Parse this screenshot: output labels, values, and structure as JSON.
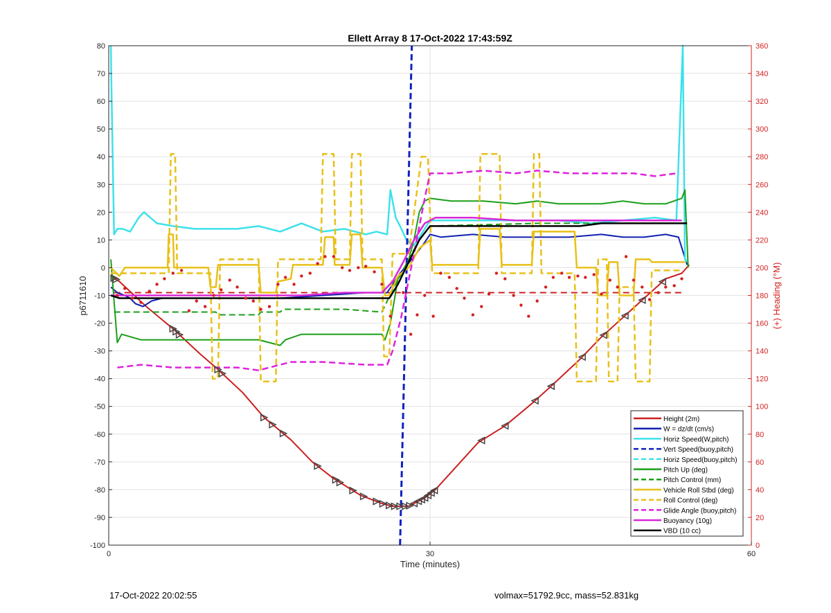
{
  "footer": {
    "left_text": "17-Oct-2022 20:02:55",
    "right_text": "volmax=51792.9cc, mass=52.831kg"
  },
  "chart_data": {
    "type": "line",
    "title": "Ellett Array 8 17-Oct-2022 17:43:59Z",
    "xlabel": "Time (minutes)",
    "ylabel": "p6711610",
    "ylabel_right": "(+) Heading (°M)",
    "xlim": [
      0,
      60
    ],
    "ylim": [
      -100,
      80
    ],
    "ylim_right": [
      0,
      360
    ],
    "x_ticks": [
      0,
      30,
      60
    ],
    "y_ticks": [
      80,
      70,
      60,
      50,
      40,
      30,
      20,
      10,
      0,
      -10,
      -20,
      -30,
      -40,
      -50,
      -60,
      -70,
      -80,
      -90,
      -100
    ],
    "y_ticks_right": [
      360,
      340,
      320,
      300,
      280,
      260,
      240,
      220,
      200,
      180,
      160,
      140,
      120,
      100,
      80,
      60,
      40,
      20,
      0
    ],
    "grid": true,
    "legend_position": "bottom-right",
    "colors": {
      "axis_right": "#d42020",
      "title": "#000000"
    },
    "series": [
      {
        "name": "Height (2m)",
        "color": "#cc1f1f",
        "style": "solid",
        "width": 2,
        "x": [
          0.2,
          1.0,
          3.5,
          6.0,
          8.5,
          10.0,
          12.5,
          14.5,
          17.0,
          19.0,
          21.0,
          23.5,
          25.5,
          26.5,
          27.5,
          28.0,
          28.5,
          29.5,
          30.5,
          34.5,
          37.0,
          39.5,
          41.5,
          44.0,
          46.0,
          48.0,
          50.0,
          52.0,
          53.5,
          54.2
        ],
        "y": [
          -3,
          -5,
          -14,
          -22,
          -31,
          -36,
          -45,
          -54,
          -62,
          -70,
          -76,
          -82,
          -85,
          -86,
          -86,
          -86,
          -85,
          -83,
          -80,
          -63,
          -57,
          -49,
          -42,
          -33,
          -25,
          -18,
          -11,
          -4,
          -2,
          1
        ]
      },
      {
        "name": "W = dz/dt (cm/s)",
        "color": "#1020b0",
        "style": "solid",
        "width": 2,
        "x": [
          0.2,
          0.8,
          1.5,
          2.0,
          2.5,
          3.2,
          4.0,
          5.0,
          8.0,
          12.0,
          16.0,
          20.0,
          24.0,
          26.0,
          26.5,
          27.2,
          28.5,
          29.3,
          30.0,
          31.0,
          34.0,
          37.0,
          40.0,
          43.0,
          46.0,
          48.0,
          50.0,
          52.0,
          53.2,
          54.0
        ],
        "y": [
          -7,
          -9,
          -10,
          -11,
          -13,
          -14,
          -12,
          -11,
          -11,
          -11,
          -11,
          -10,
          -9,
          -9,
          -6,
          -2,
          4,
          8,
          12,
          11,
          12,
          11,
          11,
          11,
          12,
          11,
          11,
          12,
          11,
          1
        ]
      },
      {
        "name": "Horiz Speed(W,pitch)",
        "color": "#3de1eb",
        "style": "solid",
        "width": 2.5,
        "x": [
          0.2,
          0.25,
          0.5,
          0.8,
          1.3,
          2.0,
          2.8,
          3.3,
          4.5,
          6.0,
          8.0,
          10.0,
          12.0,
          14.0,
          16.0,
          18.0,
          20.0,
          22.0,
          24.0,
          25.0,
          26.0,
          26.3,
          26.8,
          27.2,
          27.8,
          28.5,
          30.0,
          33.0,
          36.0,
          39.0,
          42.0,
          45.0,
          48.0,
          51.0,
          53.0,
          53.6,
          53.8,
          54.0
        ],
        "y": [
          80,
          66,
          12,
          14,
          14,
          13,
          18,
          20,
          16,
          15,
          14,
          14,
          14,
          15,
          13,
          16,
          13,
          14,
          12,
          13,
          12,
          28,
          18,
          15,
          10,
          8,
          17,
          17,
          17,
          17,
          17,
          16,
          17,
          18,
          17,
          80,
          3,
          2
        ]
      },
      {
        "name": "Vert Speed(buoy,pitch)",
        "color": "#1020c0",
        "style": "dashed",
        "width": 3,
        "x": [
          27.2,
          28.3
        ],
        "y": [
          -100,
          80
        ]
      },
      {
        "name": "Horiz Speed(buoy,pitch)",
        "color": "#3de1eb",
        "style": "dashed",
        "width": 2,
        "x": [],
        "y": []
      },
      {
        "name": "Pitch Up (deg)",
        "color": "#1a9e1a",
        "style": "solid",
        "width": 2,
        "x": [
          0.2,
          0.5,
          0.8,
          1.2,
          3.0,
          6.0,
          9.0,
          12.0,
          14.0,
          15.0,
          16.0,
          16.5,
          18.0,
          21.0,
          24.0,
          25.5,
          25.8,
          26.3,
          27.0,
          27.8,
          28.5,
          29.0,
          29.5,
          30.0,
          32.0,
          35.0,
          38.0,
          40.0,
          42.0,
          44.0,
          46.0,
          48.0,
          50.0,
          52.0,
          53.5,
          53.8,
          54.1
        ],
        "y": [
          3,
          -12,
          -27,
          -24,
          -26,
          -26,
          -26,
          -26,
          -26,
          -27,
          -28,
          -26,
          -24,
          -24,
          -24,
          -24,
          -26,
          -20,
          -4,
          0,
          10,
          20,
          24,
          25,
          24,
          24,
          23,
          24,
          23,
          23,
          23,
          24,
          23,
          23,
          25,
          28,
          0
        ]
      },
      {
        "name": "Pitch Control (mm)",
        "color": "#1a9e1a",
        "style": "dashed",
        "width": 2,
        "x": [
          0.5,
          10.0,
          10.2,
          14.0,
          14.2,
          16.0,
          16.3,
          22.0,
          25.5,
          26.5,
          28.0,
          29.0,
          30.0,
          40.0,
          50.0,
          53.5
        ],
        "y": [
          -16,
          -16,
          -17,
          -17,
          -16,
          -16,
          -15,
          -15,
          -16,
          -8,
          3,
          10,
          15,
          16,
          16,
          16
        ]
      },
      {
        "name": "Vehicle Roll Stbd (deg)",
        "color": "#e8c018",
        "style": "solid",
        "width": 2.5,
        "x": [
          0.2,
          1.0,
          1.5,
          5.5,
          5.6,
          6.0,
          6.1,
          9.3,
          9.5,
          10.0,
          10.2,
          14.0,
          14.2,
          15.6,
          15.8,
          17.0,
          17.2,
          20.0,
          20.2,
          21.0,
          21.1,
          22.5,
          22.7,
          23.5,
          23.7,
          25.5,
          25.8,
          26.2,
          27.0,
          28.0,
          29.0,
          30.0,
          30.2,
          34.5,
          34.7,
          36.5,
          36.7,
          39.5,
          39.7,
          43.5,
          43.7,
          45.5,
          45.7,
          46.5,
          46.7,
          47.5,
          47.7,
          49.0,
          49.2,
          50.5,
          50.7,
          53.5,
          53.8
        ],
        "y": [
          0,
          -3,
          0,
          0,
          12,
          12,
          0,
          0,
          -7,
          -7,
          1,
          1,
          -9,
          -9,
          -5,
          -4,
          1,
          1,
          11,
          11,
          1,
          1,
          12,
          12,
          0,
          0,
          -10,
          -10,
          -3,
          0,
          7,
          10,
          1,
          1,
          14,
          14,
          1,
          1,
          13,
          13,
          0,
          0,
          -10,
          -10,
          2,
          2,
          -10,
          -10,
          3,
          3,
          2,
          2,
          2
        ]
      },
      {
        "name": "Roll Control (deg)",
        "color": "#e8c018",
        "style": "dashed",
        "width": 2.5,
        "x": [
          0.2,
          5.6,
          5.8,
          6.2,
          6.4,
          9.5,
          9.7,
          10.2,
          10.4,
          14.0,
          14.2,
          15.6,
          15.8,
          17.0,
          17.2,
          19.8,
          20.0,
          21.0,
          21.2,
          22.5,
          22.7,
          23.5,
          23.7,
          25.5,
          25.7,
          26.2,
          26.5,
          28.0,
          29.2,
          29.8,
          30.2,
          34.5,
          34.7,
          36.5,
          36.7,
          39.5,
          39.7,
          40.2,
          40.4,
          43.5,
          43.7,
          45.5,
          45.7,
          46.5,
          46.7,
          47.5,
          47.7,
          49.0,
          49.2,
          50.5,
          50.7,
          53.5
        ],
        "y": [
          -2,
          -2,
          41,
          41,
          -2,
          -2,
          -40,
          -40,
          3,
          3,
          -41,
          -41,
          3,
          3,
          3,
          3,
          41,
          41,
          3,
          3,
          41,
          41,
          3,
          3,
          -32,
          -32,
          5,
          5,
          40,
          40,
          -2,
          -2,
          41,
          41,
          -2,
          -2,
          41,
          41,
          -2,
          -2,
          -41,
          -41,
          3,
          3,
          -41,
          -41,
          -7,
          -7,
          -41,
          -41,
          -1,
          -1
        ]
      },
      {
        "name": "Glide Angle (buoy,pitch)",
        "color": "#dd22dd",
        "style": "dashed",
        "width": 2.5,
        "x": [
          0.8,
          3.0,
          6.0,
          9.0,
          12.0,
          14.0,
          16.0,
          17.0,
          20.0,
          24.0,
          26.0,
          26.5,
          27.3,
          28.5,
          29.5,
          30.0,
          32.0,
          35.0,
          38.0,
          40.0,
          43.0,
          46.0,
          49.0,
          51.0,
          53.0
        ],
        "y": [
          -36,
          -35,
          -36,
          -36,
          -36,
          -37,
          -35,
          -34,
          -34,
          -35,
          -35,
          -30,
          -18,
          5,
          25,
          34,
          34,
          35,
          34,
          35,
          34,
          34,
          34,
          33,
          34
        ]
      },
      {
        "name": "Buoyancy (10g)",
        "color": "#d826d8",
        "style": "solid",
        "width": 2.5,
        "x": [
          0.2,
          3.0,
          6.0,
          10.0,
          14.0,
          18.0,
          22.0,
          25.5,
          26.5,
          27.5,
          28.5,
          29.5,
          30.5,
          34.0,
          38.0,
          42.0,
          46.0,
          50.0,
          53.5
        ],
        "y": [
          -10,
          -10,
          -10,
          -10,
          -10,
          -10,
          -9,
          -9,
          -5,
          2,
          10,
          16,
          18,
          18,
          17,
          17,
          17,
          17,
          17
        ]
      },
      {
        "name": "VBD (10 cc)",
        "color": "#000000",
        "style": "solid",
        "width": 2.5,
        "x": [
          0.2,
          1.0,
          5.0,
          10.0,
          15.0,
          20.0,
          24.0,
          26.2,
          27.0,
          28.0,
          29.0,
          30.0,
          34.0,
          38.0,
          42.0,
          44.0,
          46.0,
          48.0,
          50.0,
          54.0
        ],
        "y": [
          -10,
          -11,
          -11,
          -11,
          -11,
          -11,
          -11,
          -11,
          -6,
          2,
          10,
          15,
          15,
          15,
          15,
          15,
          16,
          16,
          16,
          16
        ]
      }
    ],
    "heading_series": {
      "name": "Heading",
      "axis": "right",
      "color": "#d42020",
      "style": "dotted",
      "x": [
        0.8,
        1.5,
        2.2,
        3.0,
        3.8,
        4.5,
        5.2,
        6.0,
        6.8,
        7.5,
        8.2,
        9.0,
        9.8,
        10.5,
        11.3,
        12.0,
        12.8,
        13.5,
        14.2,
        15.0,
        15.8,
        16.5,
        17.3,
        18.0,
        18.8,
        19.5,
        20.2,
        21.0,
        21.8,
        22.5,
        23.3,
        24.0,
        24.8,
        25.5,
        26.3,
        27.5,
        28.2,
        28.8,
        29.5,
        30.3,
        31.0,
        31.8,
        32.5,
        33.2,
        34.0,
        34.8,
        35.5,
        36.2,
        37.0,
        37.8,
        38.5,
        39.2,
        40.0,
        40.8,
        41.5,
        42.3,
        43.0,
        43.8,
        44.5,
        45.3,
        46.0,
        46.8,
        47.5,
        48.3,
        49.0,
        49.8,
        50.5,
        51.3,
        52.0,
        52.8,
        53.5
      ],
      "y": [
        180,
        185,
        178,
        175,
        183,
        188,
        192,
        196,
        198,
        169,
        176,
        172,
        180,
        184,
        191,
        186,
        178,
        176,
        170,
        172,
        188,
        193,
        188,
        194,
        196,
        203,
        208,
        208,
        200,
        198,
        200,
        201,
        197,
        188,
        165,
        182,
        152,
        166,
        180,
        165,
        196,
        193,
        185,
        178,
        166,
        172,
        181,
        196,
        192,
        180,
        173,
        165,
        176,
        186,
        193,
        196,
        193,
        194,
        193,
        195,
        181,
        191,
        186,
        208,
        191,
        186,
        177,
        182,
        186,
        187,
        192
      ]
    },
    "reference_lines": [
      {
        "axis": "right",
        "color": "#cc2020",
        "style": "dashed",
        "y": 182,
        "x": [
          0.5,
          53.8
        ]
      }
    ],
    "markers": {
      "shape": "triangle",
      "color": "#444444",
      "on_series": "Height (2m)",
      "x_down": [
        0.5,
        0.7,
        6.0,
        6.3,
        6.6,
        10.2,
        10.6,
        14.5,
        15.3,
        16.3,
        19.5,
        21.2,
        21.6,
        22.8,
        23.8,
        25.0,
        25.6,
        26.2,
        26.7,
        27.2,
        27.7,
        28.1
      ],
      "x_up": [
        28.5,
        28.9,
        29.2,
        29.5,
        29.8,
        30.1,
        30.4,
        34.8,
        37.0,
        39.8,
        41.3,
        44.2,
        46.2,
        48.2,
        49.8,
        51.7
      ]
    }
  }
}
